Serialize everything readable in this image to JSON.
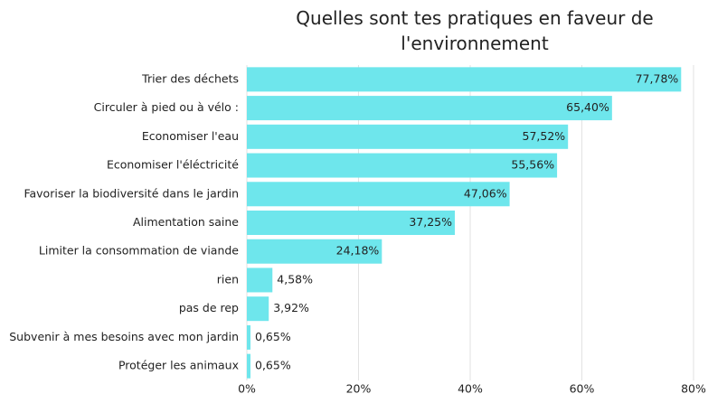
{
  "chart_data": {
    "type": "barh",
    "title": "Quelles sont tes pratiques en faveur de l'environnement",
    "categories": [
      "Trier des déchets",
      "Circuler à pied ou à vélo :",
      "Economiser l'eau",
      "Economiser l'éléctricité",
      "Favoriser la biodiversité dans le jardin",
      "Alimentation saine",
      "Limiter la consommation de viande",
      "rien",
      "pas de rep",
      "Subvenir à mes besoins avec mon jardin",
      "Protéger les animaux"
    ],
    "values": [
      77.78,
      65.4,
      57.52,
      55.56,
      47.06,
      37.25,
      24.18,
      4.58,
      3.92,
      0.65,
      0.65
    ],
    "value_labels": [
      "77,78%",
      "65,40%",
      "57,52%",
      "55,56%",
      "47,06%",
      "37,25%",
      "24,18%",
      "4,58%",
      "3,92%",
      "0,65%",
      "0,65%"
    ],
    "color": "#6ee6ec",
    "xlim": [
      0,
      80
    ],
    "xticks": [
      {
        "value": 0,
        "label": "0%"
      },
      {
        "value": 20,
        "label": "20%"
      },
      {
        "value": 40,
        "label": "40%"
      },
      {
        "value": 60,
        "label": "60%"
      },
      {
        "value": 80,
        "label": "80%"
      }
    ],
    "grid": true
  }
}
